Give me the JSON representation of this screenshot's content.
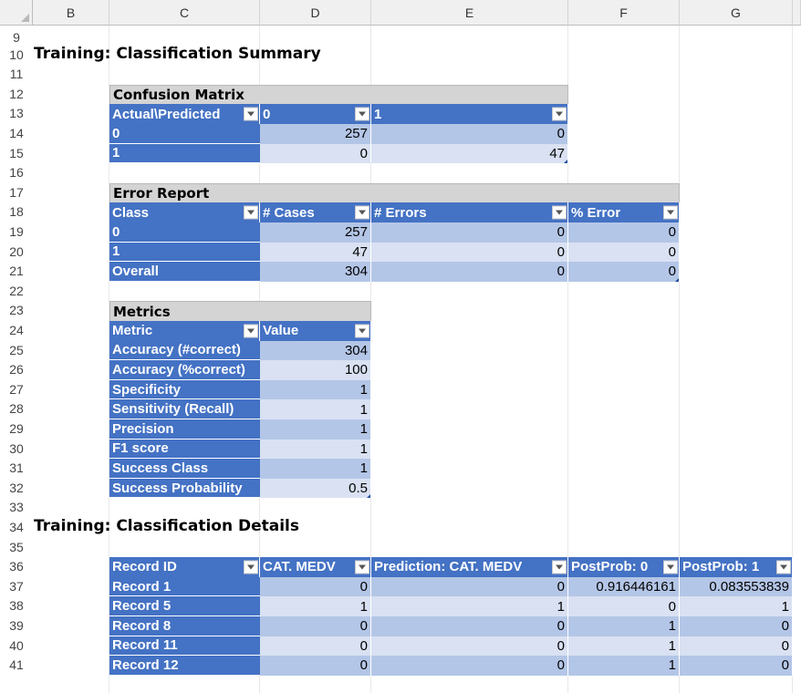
{
  "columns": [
    "B",
    "C",
    "D",
    "E",
    "F",
    "G"
  ],
  "row_numbers": [
    "9",
    "10",
    "11",
    "12",
    "13",
    "14",
    "15",
    "16",
    "17",
    "18",
    "19",
    "20",
    "21",
    "22",
    "23",
    "24",
    "25",
    "26",
    "27",
    "28",
    "29",
    "30",
    "31",
    "32",
    "33",
    "34",
    "35",
    "36",
    "37",
    "38",
    "39",
    "40",
    "41"
  ],
  "summary_title": "Training: Classification Summary",
  "details_title": "Training: Classification Details",
  "confusion": {
    "title": "Confusion Matrix",
    "headers": [
      "Actual\\Predicted",
      "0",
      "1"
    ],
    "rows": [
      {
        "label": "0",
        "values": [
          "257",
          "0"
        ]
      },
      {
        "label": "1",
        "values": [
          "0",
          "47"
        ]
      }
    ]
  },
  "error_report": {
    "title": "Error Report",
    "headers": [
      "Class",
      "# Cases",
      "# Errors",
      "% Error"
    ],
    "rows": [
      {
        "label": "0",
        "values": [
          "257",
          "0",
          "0"
        ]
      },
      {
        "label": "1",
        "values": [
          "47",
          "0",
          "0"
        ]
      },
      {
        "label": "Overall",
        "values": [
          "304",
          "0",
          "0"
        ]
      }
    ]
  },
  "metrics": {
    "title": "Metrics",
    "headers": [
      "Metric",
      "Value"
    ],
    "rows": [
      {
        "label": "Accuracy (#correct)",
        "value": "304"
      },
      {
        "label": "Accuracy (%correct)",
        "value": "100"
      },
      {
        "label": "Specificity",
        "value": "1"
      },
      {
        "label": "Sensitivity (Recall)",
        "value": "1"
      },
      {
        "label": "Precision",
        "value": "1"
      },
      {
        "label": "F1 score",
        "value": "1"
      },
      {
        "label": "Success Class",
        "value": "1"
      },
      {
        "label": "Success Probability",
        "value": "0.5"
      }
    ]
  },
  "details": {
    "headers": [
      "Record ID",
      "CAT. MEDV",
      "Prediction: CAT. MEDV",
      "PostProb: 0",
      "PostProb: 1"
    ],
    "rows": [
      {
        "label": "Record 1",
        "values": [
          "0",
          "0",
          "0.916446161",
          "0.083553839"
        ]
      },
      {
        "label": "Record 5",
        "values": [
          "1",
          "1",
          "0",
          "1"
        ]
      },
      {
        "label": "Record 8",
        "values": [
          "0",
          "0",
          "1",
          "0"
        ]
      },
      {
        "label": "Record 11",
        "values": [
          "0",
          "0",
          "1",
          "0"
        ]
      },
      {
        "label": "Record 12",
        "values": [
          "0",
          "0",
          "1",
          "0"
        ]
      }
    ]
  }
}
